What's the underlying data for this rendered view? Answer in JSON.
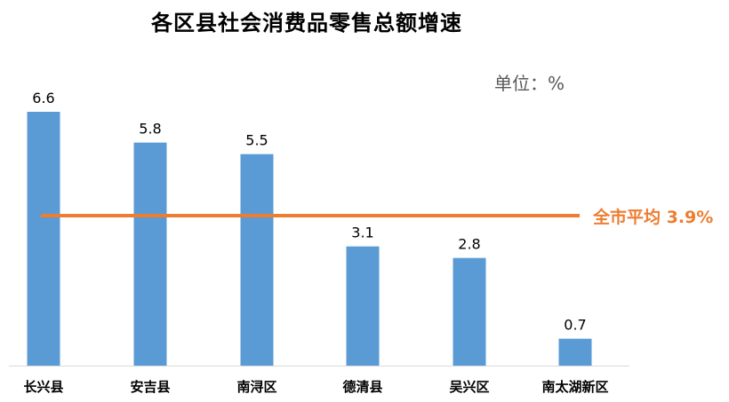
{
  "title": "各区县社会消费品零售总额增速",
  "unit_label": "单位：%",
  "colors": {
    "bar": "#5b9bd5",
    "average_line": "#ed7d31",
    "average_text": "#ed7d31",
    "axis": "#d9d9d9",
    "text": "#000000"
  },
  "chart_data": {
    "type": "bar",
    "title": "各区县社会消费品零售总额增速",
    "xlabel": "",
    "ylabel": "",
    "unit": "单位：%",
    "categories": [
      "长兴县",
      "安吉县",
      "南浔区",
      "德清县",
      "吴兴区",
      "南太湖新区"
    ],
    "values": [
      6.6,
      5.8,
      5.5,
      3.1,
      2.8,
      0.7
    ],
    "data_labels": [
      "6.6",
      "5.8",
      "5.5",
      "3.1",
      "2.8",
      "0.7"
    ],
    "reference_line": {
      "label": "全市平均 3.9%",
      "value": 3.9
    },
    "ylim": [
      0,
      6.6
    ],
    "grid": false,
    "legend": "none"
  }
}
